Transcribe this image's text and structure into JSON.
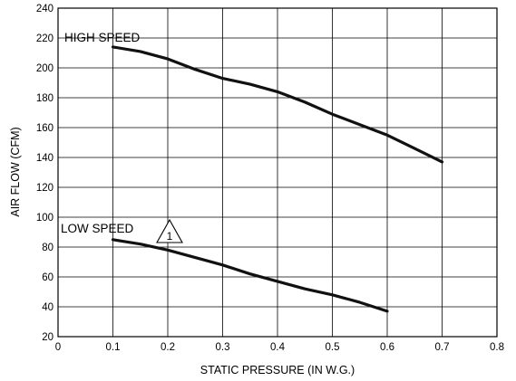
{
  "chart_data": {
    "type": "line",
    "title": "",
    "xlabel": "STATIC PRESSURE (IN W.G.)",
    "ylabel": "AIR FLOW (CFM)",
    "xlim": [
      0,
      0.8
    ],
    "ylim": [
      20,
      240
    ],
    "xticks": [
      "0",
      "0.1",
      "0.2",
      "0.3",
      "0.4",
      "0.5",
      "0.6",
      "0.7",
      "0.8"
    ],
    "yticks": [
      "20",
      "40",
      "60",
      "80",
      "100",
      "120",
      "140",
      "160",
      "180",
      "200",
      "220",
      "240"
    ],
    "grid": true,
    "series": [
      {
        "name": "HIGH SPEED",
        "x": [
          0.1,
          0.15,
          0.2,
          0.25,
          0.3,
          0.35,
          0.4,
          0.45,
          0.5,
          0.55,
          0.6,
          0.65,
          0.7
        ],
        "y": [
          214,
          211,
          206,
          199,
          193,
          189,
          184,
          177,
          169,
          162,
          155,
          146,
          137
        ]
      },
      {
        "name": "LOW SPEED",
        "note": "1",
        "x": [
          0.1,
          0.15,
          0.2,
          0.25,
          0.3,
          0.35,
          0.4,
          0.45,
          0.5,
          0.55,
          0.6
        ],
        "y": [
          85,
          82,
          78,
          73,
          68,
          62,
          57,
          52,
          48,
          43,
          37
        ]
      }
    ]
  }
}
